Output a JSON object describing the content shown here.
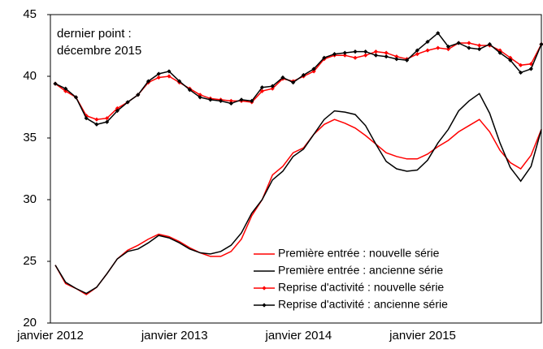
{
  "chart_data": {
    "type": "line",
    "annotation": [
      "dernier point :",
      "décembre 2015"
    ],
    "categories": [
      "janvier 2012",
      null,
      null,
      null,
      null,
      null,
      null,
      null,
      null,
      null,
      null,
      null,
      "janvier 2013",
      null,
      null,
      null,
      null,
      null,
      null,
      null,
      null,
      null,
      null,
      null,
      "janvier 2014",
      null,
      null,
      null,
      null,
      null,
      null,
      null,
      null,
      null,
      null,
      null,
      "janvier 2015",
      null,
      null,
      null,
      null,
      null,
      null,
      null,
      null,
      null,
      null,
      null
    ],
    "series": [
      {
        "name": "Première entrée : nouvelle série",
        "color": "#ff0000",
        "marker": null,
        "values": [
          24.7,
          23.2,
          22.8,
          22.3,
          22.9,
          24.0,
          25.2,
          25.9,
          26.3,
          26.8,
          27.2,
          27.0,
          26.6,
          26.1,
          25.7,
          25.4,
          25.4,
          25.8,
          26.8,
          28.7,
          30.0,
          32.0,
          32.7,
          33.8,
          34.2,
          35.3,
          36.1,
          36.5,
          36.2,
          35.8,
          35.2,
          34.5,
          33.8,
          33.5,
          33.3,
          33.3,
          33.7,
          34.3,
          34.8,
          35.5,
          36.0,
          36.5,
          35.5,
          34.0,
          33.0,
          32.5,
          33.6,
          35.7
        ]
      },
      {
        "name": "Première entrée : ancienne série",
        "color": "#000000",
        "marker": null,
        "values": [
          24.7,
          23.3,
          22.8,
          22.4,
          22.9,
          24.0,
          25.2,
          25.8,
          26.0,
          26.5,
          27.1,
          26.9,
          26.5,
          26.0,
          25.7,
          25.6,
          25.8,
          26.3,
          27.3,
          28.9,
          30.0,
          31.6,
          32.3,
          33.5,
          34.1,
          35.3,
          36.5,
          37.2,
          37.1,
          36.9,
          36.0,
          34.5,
          33.1,
          32.5,
          32.3,
          32.4,
          33.2,
          34.6,
          35.7,
          37.2,
          38.0,
          38.6,
          37.0,
          34.6,
          32.6,
          31.5,
          32.7,
          35.7
        ]
      },
      {
        "name": "Reprise d'activité : nouvelle série",
        "color": "#ff0000",
        "marker": "diamond",
        "values": [
          39.4,
          38.8,
          38.3,
          36.8,
          36.5,
          36.6,
          37.4,
          37.9,
          38.5,
          39.5,
          39.9,
          40.0,
          39.5,
          39.0,
          38.5,
          38.2,
          38.1,
          38.0,
          38.0,
          37.9,
          38.8,
          39.0,
          39.8,
          39.6,
          40.0,
          40.4,
          41.4,
          41.7,
          41.7,
          41.5,
          41.7,
          42.0,
          41.9,
          41.6,
          41.4,
          41.8,
          42.1,
          42.3,
          42.2,
          42.7,
          42.7,
          42.5,
          42.5,
          42.1,
          41.5,
          40.9,
          41.0,
          42.6
        ]
      },
      {
        "name": "Reprise d'activité : ancienne série",
        "color": "#000000",
        "marker": "diamond",
        "values": [
          39.4,
          39.0,
          38.3,
          36.6,
          36.1,
          36.3,
          37.2,
          37.9,
          38.5,
          39.6,
          40.2,
          40.4,
          39.6,
          38.9,
          38.3,
          38.1,
          38.0,
          37.8,
          38.1,
          38.0,
          39.1,
          39.2,
          39.9,
          39.5,
          40.1,
          40.6,
          41.5,
          41.8,
          41.9,
          42.0,
          42.0,
          41.7,
          41.6,
          41.4,
          41.3,
          42.1,
          42.8,
          43.5,
          42.4,
          42.7,
          42.3,
          42.2,
          42.6,
          41.9,
          41.3,
          40.3,
          40.6,
          42.6
        ]
      }
    ],
    "ylim": [
      20,
      45
    ],
    "yticks": [
      20,
      25,
      30,
      35,
      40,
      45
    ],
    "grid": false,
    "legend": "lower right"
  }
}
